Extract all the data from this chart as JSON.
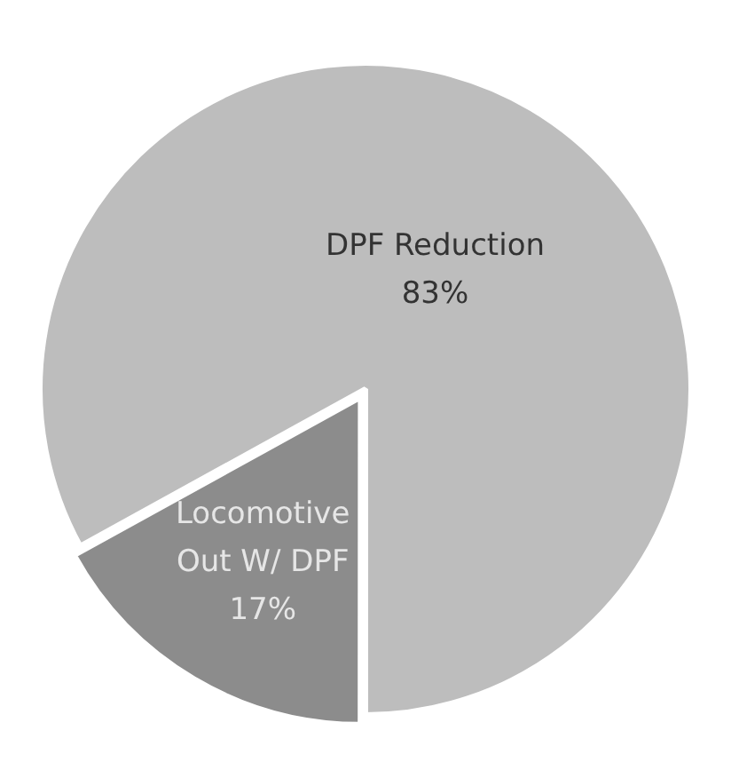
{
  "chart_data": {
    "type": "pie",
    "categories": [
      "Locomotive Out W/ DPF",
      "DPF Reduction"
    ],
    "values": [
      17,
      83
    ],
    "value_labels": [
      "17%",
      "83%"
    ],
    "colors": [
      "#8c8c8c",
      "#bdbdbd"
    ],
    "legend": false
  }
}
